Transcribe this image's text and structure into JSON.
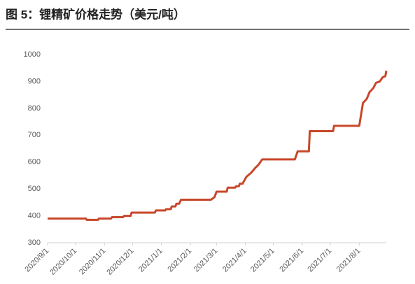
{
  "chart_data": {
    "type": "line",
    "title": "图 5：锂精矿价格走势（美元/吨）",
    "x": [
      "2020/9/1",
      "2020/10/12",
      "2020/10/13",
      "2020/10/25",
      "2020/10/26",
      "2020/11/8",
      "2020/11/9",
      "2020/11/21",
      "2020/11/22",
      "2020/11/29",
      "2020/11/30",
      "2020/12/25",
      "2020/12/26",
      "2021/1/5",
      "2021/1/6",
      "2021/1/11",
      "2021/1/12",
      "2021/1/16",
      "2021/1/17",
      "2021/1/20",
      "2021/1/22",
      "2021/2/23",
      "2021/2/27",
      "2021/3/1",
      "2021/3/12",
      "2021/3/13",
      "2021/3/21",
      "2021/3/22",
      "2021/3/25",
      "2021/3/26",
      "2021/3/29",
      "2021/4/2",
      "2021/4/7",
      "2021/4/12",
      "2021/4/15",
      "2021/4/19",
      "2021/5/24",
      "2021/5/27",
      "2021/6/8",
      "2021/6/9",
      "2021/7/4",
      "2021/7/5",
      "2021/8/1",
      "2021/8/5",
      "2021/8/9",
      "2021/8/12",
      "2021/8/16",
      "2021/8/19",
      "2021/8/23",
      "2021/8/26",
      "2021/8/29",
      "2021/8/30"
    ],
    "series": [
      {
        "color": "#c8472a",
        "values": [
          390,
          390,
          385,
          385,
          390,
          390,
          395,
          395,
          400,
          400,
          412,
          412,
          420,
          420,
          425,
          425,
          435,
          435,
          445,
          445,
          460,
          460,
          470,
          490,
          490,
          505,
          505,
          510,
          510,
          520,
          520,
          545,
          560,
          580,
          590,
          610,
          610,
          640,
          640,
          715,
          715,
          735,
          735,
          820,
          835,
          860,
          875,
          895,
          900,
          915,
          920,
          940
        ]
      }
    ],
    "xlim": [
      "2020/9/1",
      "2021/8/30"
    ],
    "xticks": [
      "2020/9/1",
      "2020/10/1",
      "2020/11/1",
      "2020/12/1",
      "2021/1/1",
      "2021/2/1",
      "2021/3/1",
      "2021/4/1",
      "2021/5/1",
      "2021/6/1",
      "2021/7/1",
      "2021/8/1"
    ],
    "ylim": [
      300,
      1000
    ],
    "yticks": [
      300,
      400,
      500,
      600,
      700,
      800,
      900,
      1000
    ],
    "grid": false
  }
}
